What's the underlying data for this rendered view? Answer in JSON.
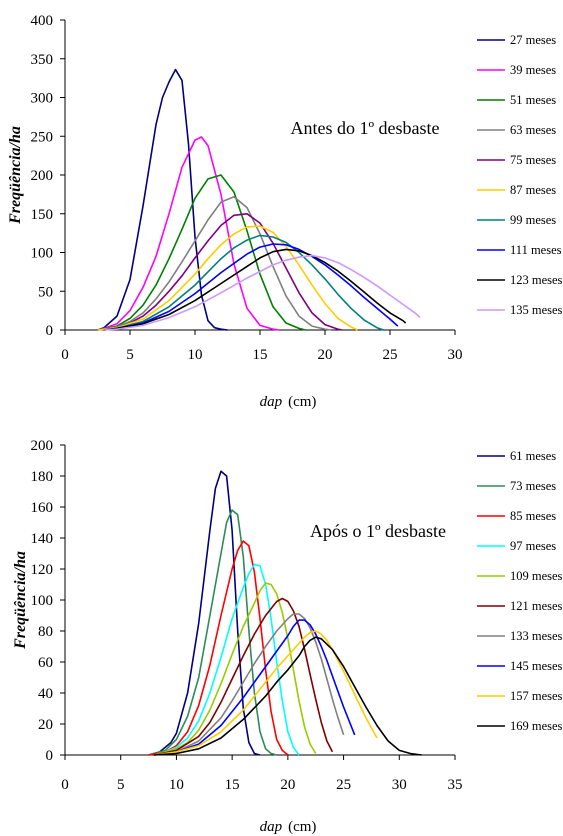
{
  "chart_data": [
    {
      "type": "line",
      "annotation": "Antes do 1º desbaste",
      "ylabel": "Freqüência/ha",
      "xlabel_italic": "dap",
      "xlabel_unit": "(cm)",
      "xlim": [
        0,
        30
      ],
      "ylim": [
        0,
        400
      ],
      "xticks": [
        0,
        5,
        10,
        15,
        20,
        25,
        30
      ],
      "yticks": [
        0,
        50,
        100,
        150,
        200,
        250,
        300,
        350,
        400
      ],
      "grid": false,
      "legend_position": "right",
      "series": [
        {
          "name": "27 meses",
          "color": "#000080",
          "x": [
            2.5,
            3,
            4,
            5,
            6,
            7,
            7.5,
            8,
            8.5,
            9,
            9.5,
            10,
            10.5,
            11,
            11.5,
            12,
            12.5
          ],
          "y": [
            0,
            3,
            18,
            65,
            160,
            265,
            300,
            320,
            336,
            322,
            240,
            120,
            45,
            12,
            3,
            1,
            0
          ]
        },
        {
          "name": "39 meses",
          "color": "#ff00ff",
          "x": [
            2.5,
            3,
            4,
            5,
            6,
            7,
            8,
            9,
            10,
            10.5,
            11,
            12,
            13,
            14,
            15,
            16,
            16.5
          ],
          "y": [
            0,
            2,
            8,
            25,
            55,
            95,
            150,
            210,
            245,
            249,
            238,
            175,
            85,
            28,
            6,
            1,
            0
          ]
        },
        {
          "name": "51 meses",
          "color": "#008000",
          "x": [
            2.5,
            4,
            5,
            6,
            7,
            8,
            9,
            10,
            11,
            12,
            13,
            14,
            15,
            16,
            17,
            18,
            18.5
          ],
          "y": [
            0,
            5,
            15,
            32,
            58,
            92,
            130,
            170,
            195,
            200,
            178,
            128,
            72,
            30,
            9,
            2,
            0
          ]
        },
        {
          "name": "63 meses",
          "color": "#808080",
          "x": [
            2.5,
            4,
            5,
            6,
            7,
            8,
            9,
            10,
            11,
            12,
            13,
            14,
            15,
            16,
            17,
            18,
            19,
            20,
            20.5
          ],
          "y": [
            0,
            4,
            11,
            22,
            40,
            62,
            88,
            115,
            142,
            165,
            172,
            158,
            124,
            82,
            44,
            18,
            5,
            1,
            0
          ]
        },
        {
          "name": "75 meses",
          "color": "#800080",
          "x": [
            2.5,
            4,
            5,
            6,
            7,
            8,
            9,
            10,
            11,
            12,
            13,
            14,
            15,
            16,
            17,
            18,
            19,
            20,
            21,
            21.3
          ],
          "y": [
            0,
            3,
            9,
            18,
            32,
            50,
            70,
            93,
            115,
            135,
            148,
            150,
            138,
            112,
            80,
            48,
            22,
            7,
            1,
            0
          ]
        },
        {
          "name": "87 meses",
          "color": "#ffcc00",
          "x": [
            2.5,
            4,
            6,
            8,
            10,
            11,
            12,
            13,
            14,
            15,
            16,
            17,
            18,
            19,
            20,
            21,
            22,
            22.5
          ],
          "y": [
            0,
            3,
            14,
            38,
            72,
            92,
            110,
            124,
            133,
            134,
            126,
            108,
            84,
            58,
            34,
            15,
            4,
            0
          ]
        },
        {
          "name": "99 meses",
          "color": "#008080",
          "x": [
            3,
            4,
            6,
            8,
            10,
            12,
            13,
            14,
            15,
            16,
            17,
            18,
            19,
            20,
            21,
            22,
            23,
            24,
            24.5
          ],
          "y": [
            0,
            2,
            11,
            30,
            58,
            92,
            106,
            116,
            122,
            120,
            113,
            100,
            84,
            66,
            46,
            28,
            13,
            3,
            0
          ]
        },
        {
          "name": "111 meses",
          "color": "#0000ff",
          "x": [
            3,
            4,
            6,
            8,
            10,
            12,
            14,
            15,
            16,
            17,
            18,
            19,
            20,
            21,
            22,
            23,
            24,
            25,
            25.6
          ],
          "y": [
            0,
            2,
            9,
            24,
            47,
            74,
            98,
            107,
            111,
            110,
            104,
            95,
            84,
            71,
            57,
            42,
            28,
            14,
            5
          ]
        },
        {
          "name": "123 meses",
          "color": "#000000",
          "x": [
            3,
            4,
            6,
            8,
            10,
            12,
            14,
            15,
            16,
            17,
            18,
            19,
            20,
            21,
            22,
            23,
            24,
            25,
            26,
            26.2
          ],
          "y": [
            0,
            2,
            8,
            20,
            38,
            60,
            82,
            93,
            101,
            104,
            102,
            96,
            87,
            76,
            63,
            49,
            35,
            22,
            12,
            9
          ]
        },
        {
          "name": "135 meses",
          "color": "#cc99ff",
          "x": [
            3,
            4,
            6,
            8,
            10,
            12,
            14,
            16,
            17,
            18,
            19,
            20,
            21,
            22,
            23,
            24,
            25,
            26,
            27,
            27.3
          ],
          "y": [
            0,
            1,
            6,
            16,
            30,
            48,
            67,
            84,
            90,
            94,
            96,
            93,
            87,
            78,
            68,
            57,
            45,
            33,
            21,
            16
          ]
        }
      ]
    },
    {
      "type": "line",
      "annotation": "Após o 1º desbaste",
      "ylabel": "Freqüência/ha",
      "xlabel_italic": "dap",
      "xlabel_unit": "(cm)",
      "xlim": [
        0,
        35
      ],
      "ylim": [
        0,
        200
      ],
      "xticks": [
        0,
        5,
        10,
        15,
        20,
        25,
        30,
        35
      ],
      "yticks": [
        0,
        20,
        40,
        60,
        80,
        100,
        120,
        140,
        160,
        180,
        200
      ],
      "grid": false,
      "legend_position": "right",
      "series": [
        {
          "name": "61 meses",
          "color": "#000080",
          "x": [
            7.5,
            8.5,
            9.5,
            10,
            11,
            12,
            13,
            13.5,
            14,
            14.5,
            15,
            15.5,
            16,
            16.5,
            17,
            17.5
          ],
          "y": [
            0,
            2,
            8,
            14,
            40,
            85,
            145,
            172,
            183,
            180,
            145,
            80,
            30,
            8,
            1,
            0
          ]
        },
        {
          "name": "73 meses",
          "color": "#2e8b57",
          "x": [
            7.5,
            9,
            10,
            11,
            12,
            13,
            14,
            14.5,
            15,
            15.5,
            16,
            16.5,
            17,
            17.5,
            18,
            18.5,
            19
          ],
          "y": [
            0,
            3,
            10,
            25,
            50,
            90,
            130,
            150,
            158,
            155,
            128,
            80,
            40,
            15,
            4,
            1,
            0
          ]
        },
        {
          "name": "85 meses",
          "color": "#ff0000",
          "x": [
            7.5,
            9,
            10,
            11,
            12,
            13,
            14,
            15,
            15.5,
            16,
            16.5,
            17,
            17.5,
            18,
            18.5,
            19,
            19.5,
            20
          ],
          "y": [
            0,
            2,
            6,
            15,
            32,
            58,
            90,
            120,
            132,
            138,
            135,
            118,
            88,
            55,
            28,
            10,
            3,
            0
          ]
        },
        {
          "name": "97 meses",
          "color": "#00ffff",
          "x": [
            8,
            9,
            10,
            11,
            12,
            13,
            14,
            15,
            16,
            16.5,
            17,
            17.5,
            18,
            18.5,
            19,
            19.5,
            20,
            20.5,
            21
          ],
          "y": [
            0,
            2,
            5,
            11,
            22,
            40,
            63,
            88,
            108,
            117,
            123,
            122,
            110,
            88,
            60,
            35,
            15,
            5,
            0
          ]
        },
        {
          "name": "109 meses",
          "color": "#99cc00",
          "x": [
            8,
            10,
            11,
            12,
            13,
            14,
            15,
            16,
            17,
            17.5,
            18,
            18.5,
            19,
            19.5,
            20,
            20.5,
            21,
            21.5,
            22,
            22.5
          ],
          "y": [
            0,
            4,
            8,
            16,
            29,
            46,
            65,
            83,
            98,
            106,
            111,
            110,
            104,
            92,
            75,
            55,
            35,
            18,
            7,
            1
          ]
        },
        {
          "name": "121 meses",
          "color": "#800000",
          "x": [
            8,
            10,
            12,
            13,
            14,
            15,
            16,
            17,
            18,
            19,
            19.5,
            20,
            20.5,
            21,
            21.5,
            22,
            22.5,
            23,
            23.5,
            24
          ],
          "y": [
            0,
            3,
            12,
            21,
            34,
            49,
            64,
            78,
            90,
            99,
            101,
            99,
            93,
            83,
            68,
            52,
            36,
            21,
            9,
            2
          ]
        },
        {
          "name": "133 meses",
          "color": "#808080",
          "x": [
            8,
            10,
            12,
            14,
            15,
            16,
            17,
            18,
            19,
            20,
            20.5,
            21,
            21.5,
            22,
            22.5,
            23,
            23.5,
            24,
            24.5,
            25
          ],
          "y": [
            0,
            2,
            9,
            24,
            35,
            47,
            59,
            70,
            80,
            88,
            91,
            91,
            88,
            82,
            73,
            62,
            49,
            36,
            24,
            13
          ]
        },
        {
          "name": "145 meses",
          "color": "#0000ff",
          "x": [
            8,
            10,
            12,
            14,
            16,
            17,
            18,
            19,
            20,
            20.5,
            21,
            21.5,
            22,
            22.5,
            23,
            23.5,
            24,
            25,
            26
          ],
          "y": [
            0,
            2,
            7,
            19,
            37,
            47,
            57,
            67,
            77,
            83,
            87,
            87,
            84,
            78,
            70,
            61,
            51,
            31,
            13
          ]
        },
        {
          "name": "157 meses",
          "color": "#ffcc00",
          "x": [
            8,
            10,
            12,
            14,
            16,
            18,
            19,
            20,
            21,
            21.5,
            22,
            22.5,
            23,
            23.5,
            24,
            25,
            26,
            27,
            28
          ],
          "y": [
            0,
            2,
            6,
            15,
            29,
            47,
            56,
            64,
            72,
            76,
            79,
            80,
            78,
            74,
            68,
            54,
            39,
            24,
            11
          ]
        },
        {
          "name": "169 meses",
          "color": "#000000",
          "x": [
            8,
            10,
            12,
            14,
            16,
            18,
            19,
            20,
            21,
            21.5,
            22,
            22.5,
            23,
            24,
            25,
            26,
            27,
            28,
            29,
            30,
            31,
            32
          ],
          "y": [
            0,
            1,
            4,
            11,
            23,
            38,
            47,
            55,
            64,
            70,
            74,
            76,
            75,
            68,
            57,
            44,
            31,
            19,
            9,
            3,
            1,
            0
          ]
        }
      ]
    }
  ]
}
